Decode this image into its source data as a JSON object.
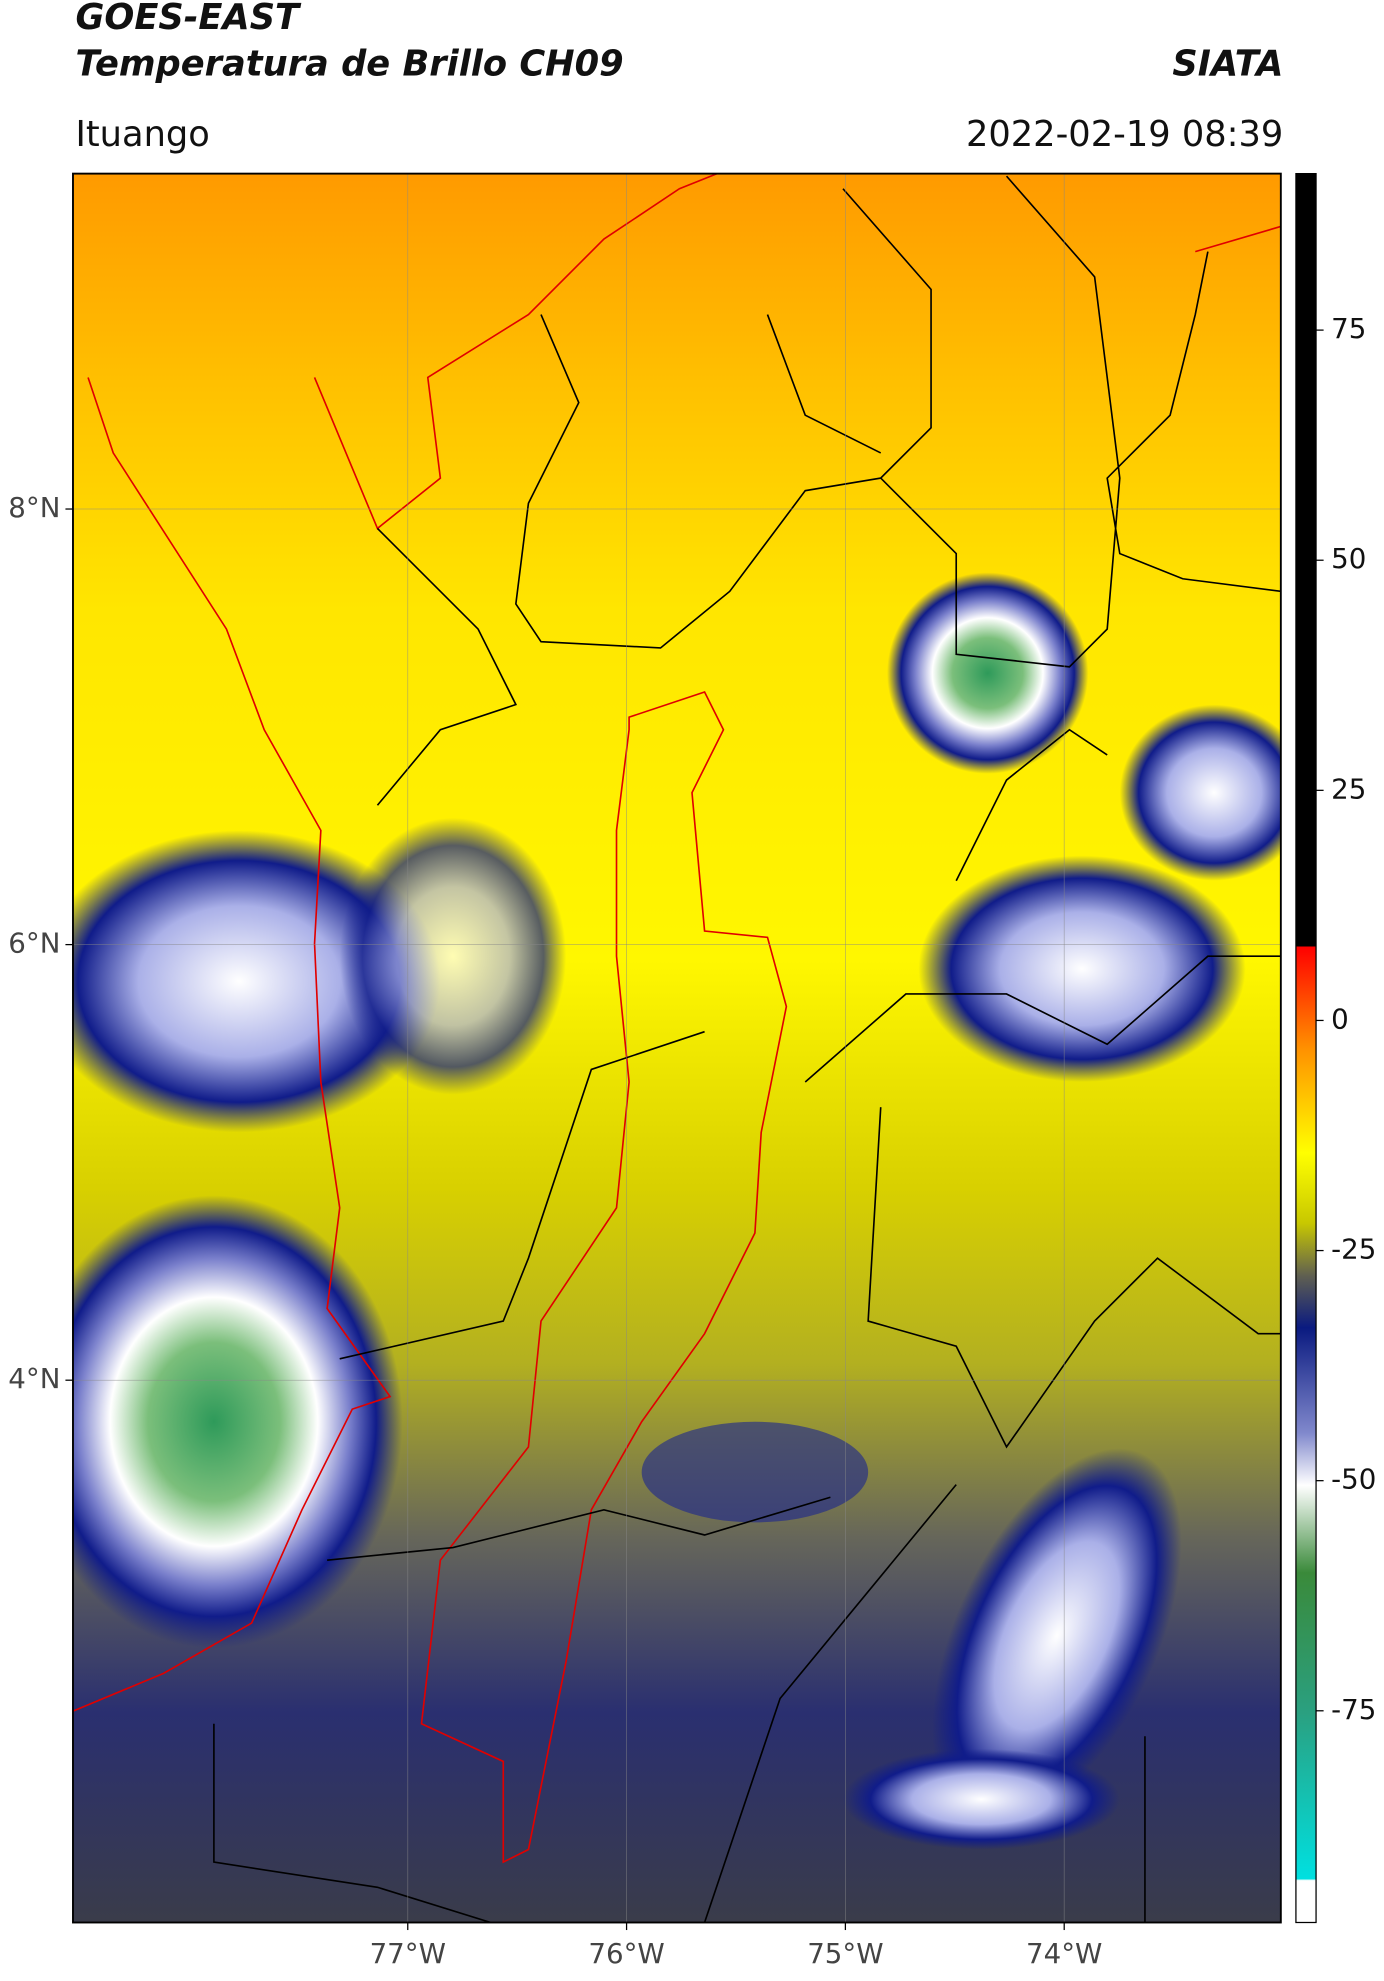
{
  "header": {
    "title": "GOES-EAST",
    "subtitle": "Temperatura de Brillo CH09",
    "source": "SIATA",
    "location": "Ituango",
    "datetime": "2022-02-19 08:39"
  },
  "map": {
    "xlim": [
      -78.53,
      -73.01
    ],
    "ylim": [
      1.51,
      9.54
    ],
    "xticks": [
      {
        "value": -77,
        "label": "77°W"
      },
      {
        "value": -76,
        "label": "76°W"
      },
      {
        "value": -75,
        "label": "75°W"
      },
      {
        "value": -74,
        "label": "74°W"
      }
    ],
    "yticks": [
      {
        "value": 8,
        "label": "8°N"
      },
      {
        "value": 6,
        "label": "6°N"
      },
      {
        "value": 4,
        "label": "4°N"
      }
    ],
    "grid": true
  },
  "colorbar": {
    "lim": [
      -98,
      92
    ],
    "ticks": [
      75,
      50,
      25,
      0,
      -25,
      -50,
      -75
    ]
  }
}
